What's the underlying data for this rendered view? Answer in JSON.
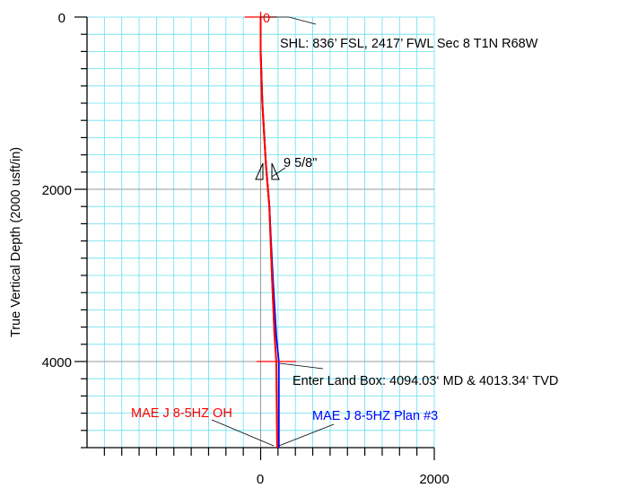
{
  "chart_data": {
    "type": "line",
    "ylabel": "True Vertical Depth (2000 usft/in)",
    "x_ticks": [
      {
        "value": 0,
        "label": "0"
      },
      {
        "value": 2000,
        "label": "2000"
      }
    ],
    "y_ticks": [
      {
        "value": 0,
        "label": "0"
      },
      {
        "value": 2000,
        "label": "2000"
      },
      {
        "value": 4000,
        "label": "4000"
      }
    ],
    "xlim": [
      -2000,
      2000
    ],
    "ylim": [
      5000,
      0
    ],
    "y_inverted": true,
    "grid": true,
    "series": [
      {
        "name": "MAE J 8-5HZ OH",
        "color": "#ff0000",
        "x": [
          0,
          0,
          20,
          60,
          100,
          130,
          160,
          180,
          190
        ],
        "y": [
          0,
          400,
          1000,
          1700,
          2200,
          3000,
          3700,
          4000,
          5000
        ]
      },
      {
        "name": "MAE J 8-5HZ Plan #3",
        "color": "#0000ff",
        "x": [
          0,
          0,
          20,
          60,
          100,
          140,
          180,
          210,
          210
        ],
        "y": [
          0,
          400,
          1000,
          1700,
          2200,
          3000,
          3700,
          4000,
          5000
        ]
      }
    ],
    "annotations": [
      {
        "text": "0",
        "color": "#ff0000"
      },
      {
        "text": "SHL: 836’ FSL, 2417’ FWL Sec 8 T1N R68W",
        "color": "#000000"
      },
      {
        "text": "9 5/8\"",
        "color": "#000000"
      },
      {
        "text": "Enter Land Box: 4094.03‘ MD & 4013.34‘ TVD",
        "color": "#000000"
      },
      {
        "text": "MAE J 8-5HZ OH",
        "color": "#ff0000"
      },
      {
        "text": "MAE J 8-5HZ Plan #3",
        "color": "#0000ff"
      }
    ],
    "colors": {
      "grid_minor": "#66e0ee",
      "grid_major": "#9a9a9a",
      "oh": "#ff0000",
      "plan": "#0000ff"
    }
  }
}
